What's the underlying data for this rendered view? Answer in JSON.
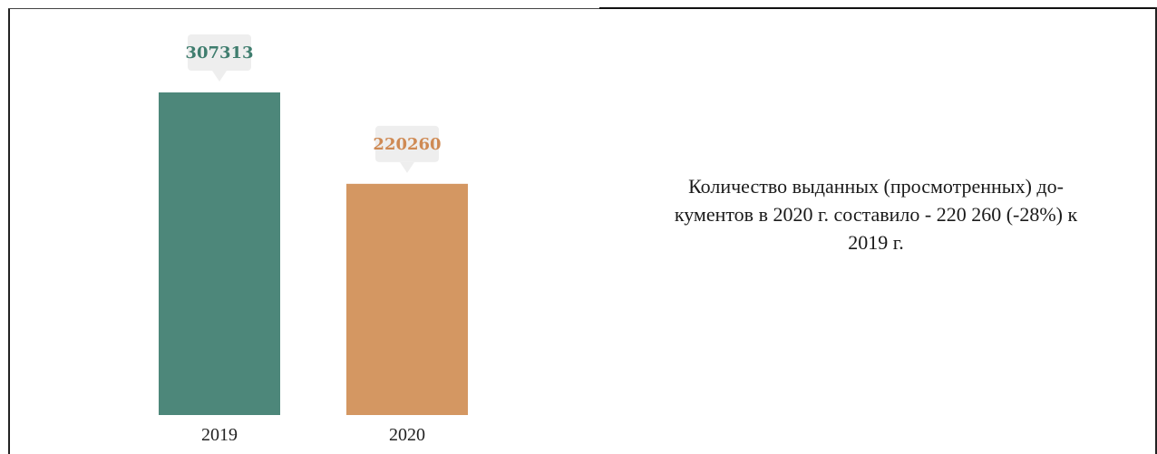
{
  "chart_data": {
    "type": "bar",
    "title": "",
    "xlabel": "",
    "ylabel": "",
    "categories": [
      "2019",
      "2020"
    ],
    "values": [
      307313,
      220260
    ],
    "value_labels": [
      "307313",
      "220260"
    ],
    "colors": [
      "#4d877a",
      "#d49762"
    ],
    "label_colors": [
      "#3f7d6e",
      "#cf8a54"
    ],
    "ylim": [
      0,
      307313
    ],
    "grid": false,
    "legend": "none"
  },
  "caption": {
    "line1": "Количество выданных (просмотренных) до-",
    "line2": "кументов в 2020 г.  составило - 220 260 (-28%) к",
    "line3": "2019 г."
  }
}
